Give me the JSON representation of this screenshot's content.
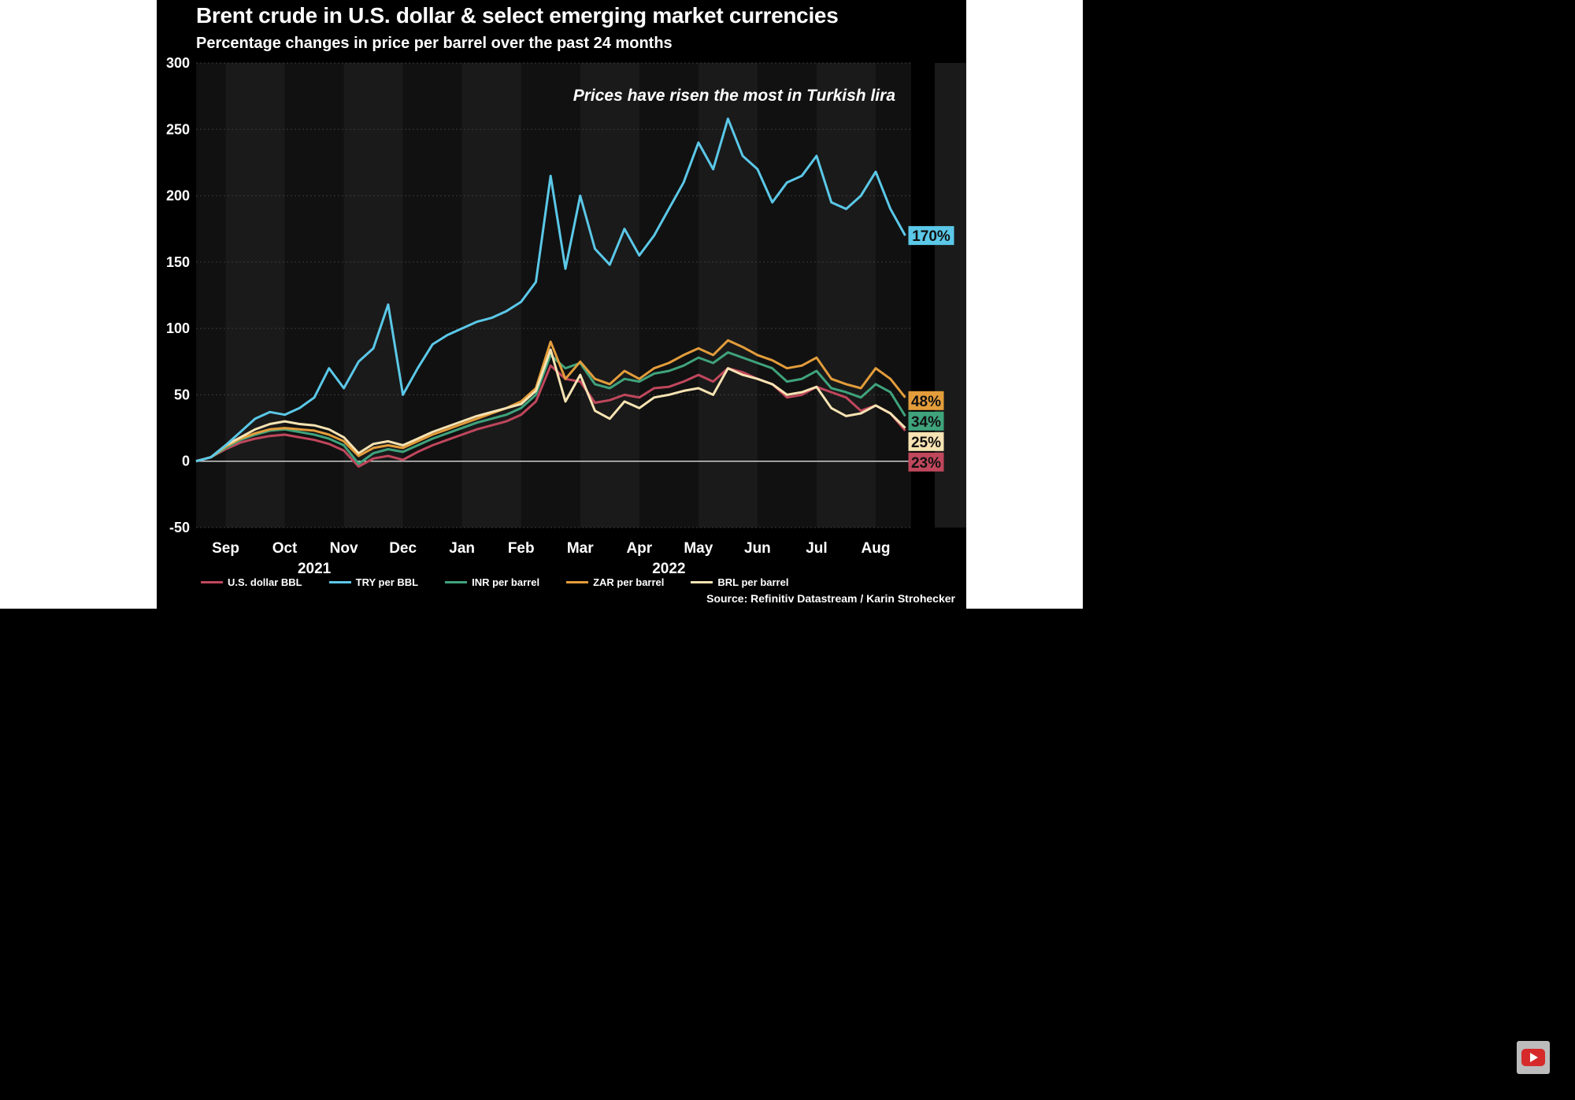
{
  "chart_data": {
    "type": "line",
    "title": "Brent crude in U.S. dollar & select emerging market currencies",
    "subtitle": "Percentage changes in price per barrel over the past 24 months",
    "annotation": "Prices have risen the most in Turkish lira",
    "source": "Source: Refinitiv Datastream / Karin Strohecker",
    "x_tick_labels": [
      "Sep",
      "Oct",
      "Nov",
      "Dec",
      "Jan",
      "Feb",
      "Mar",
      "Apr",
      "May",
      "Jun",
      "Jul",
      "Aug"
    ],
    "x_year_labels": [
      {
        "label": "2021",
        "month_index": 2
      },
      {
        "label": "2022",
        "month_index": 8
      }
    ],
    "xlabel": "",
    "ylabel": "",
    "ylim": [
      -50,
      300
    ],
    "y_ticks": [
      -50,
      0,
      50,
      100,
      150,
      200,
      250,
      300
    ],
    "x": [
      0,
      0.5,
      1,
      1.5,
      2,
      2.5,
      3,
      3.5,
      4,
      4.5,
      5,
      5.5,
      6,
      6.5,
      7,
      7.5,
      8,
      8.5,
      9,
      9.5,
      10,
      10.5,
      11,
      11.5,
      12,
      12.5,
      13,
      13.5,
      14,
      14.5,
      15,
      15.5,
      16,
      16.5,
      17,
      17.5,
      18,
      18.5,
      19,
      19.5,
      20,
      20.5,
      21,
      21.5,
      22,
      22.5,
      23,
      23.5,
      24
    ],
    "series": [
      {
        "name": "U.S. dollar BBL",
        "color": "#c0475c",
        "end_label": "23%",
        "values": [
          0,
          3,
          9,
          14,
          17,
          19,
          20,
          18,
          16,
          13,
          8,
          -4,
          2,
          4,
          1,
          7,
          12,
          16,
          20,
          24,
          27,
          30,
          35,
          45,
          72,
          62,
          60,
          44,
          46,
          50,
          48,
          55,
          56,
          60,
          65,
          60,
          70,
          67,
          62,
          58,
          48,
          50,
          56,
          52,
          48,
          38,
          42,
          36,
          23
        ]
      },
      {
        "name": "TRY per BBL",
        "color": "#5bc8e8",
        "end_label": "170%",
        "values": [
          0,
          3,
          12,
          22,
          32,
          37,
          35,
          40,
          48,
          70,
          55,
          75,
          85,
          118,
          50,
          70,
          88,
          95,
          100,
          105,
          108,
          113,
          120,
          135,
          215,
          145,
          200,
          160,
          148,
          175,
          155,
          170,
          190,
          210,
          240,
          220,
          258,
          230,
          220,
          195,
          210,
          215,
          230,
          195,
          190,
          200,
          218,
          190,
          170
        ]
      },
      {
        "name": "INR per barrel",
        "color": "#3fa37c",
        "end_label": "34%",
        "values": [
          0,
          3,
          10,
          16,
          20,
          23,
          24,
          22,
          20,
          17,
          12,
          -2,
          6,
          9,
          7,
          12,
          17,
          21,
          25,
          29,
          32,
          35,
          40,
          50,
          80,
          70,
          74,
          58,
          55,
          62,
          60,
          66,
          68,
          72,
          78,
          74,
          82,
          78,
          74,
          70,
          60,
          62,
          68,
          55,
          52,
          48,
          58,
          52,
          34
        ]
      },
      {
        "name": "ZAR per barrel",
        "color": "#e39d3b",
        "end_label": "48%",
        "values": [
          0,
          3,
          11,
          17,
          21,
          24,
          25,
          24,
          23,
          20,
          15,
          4,
          10,
          12,
          10,
          15,
          20,
          24,
          28,
          32,
          36,
          40,
          45,
          55,
          90,
          62,
          75,
          62,
          58,
          68,
          62,
          70,
          74,
          80,
          85,
          80,
          91,
          86,
          80,
          76,
          70,
          72,
          78,
          62,
          58,
          55,
          70,
          62,
          48
        ]
      },
      {
        "name": "BRL per barrel",
        "color": "#f7e3b3",
        "end_label": "25%",
        "values": [
          0,
          3,
          12,
          18,
          24,
          28,
          30,
          28,
          27,
          24,
          18,
          6,
          13,
          15,
          12,
          17,
          22,
          26,
          30,
          34,
          37,
          40,
          43,
          53,
          84,
          45,
          65,
          38,
          32,
          45,
          40,
          48,
          50,
          53,
          55,
          50,
          70,
          65,
          62,
          58,
          50,
          52,
          56,
          40,
          34,
          36,
          42,
          36,
          25
        ]
      }
    ],
    "end_label_order": [
      "48%",
      "34%",
      "25%",
      "23%"
    ]
  }
}
